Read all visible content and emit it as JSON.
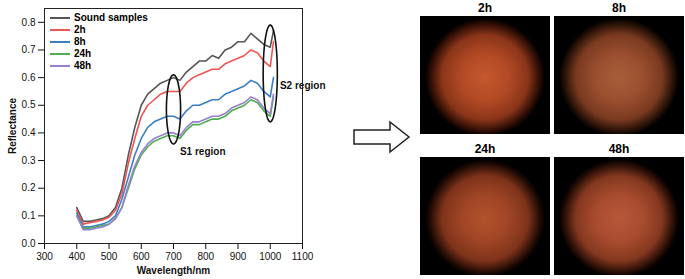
{
  "chart_data": {
    "type": "line",
    "x_label": "Wavelength/nm",
    "y_label": "Reflectance",
    "x": [
      400,
      420,
      440,
      460,
      480,
      500,
      520,
      540,
      560,
      580,
      600,
      620,
      640,
      660,
      680,
      700,
      720,
      740,
      760,
      780,
      800,
      820,
      840,
      860,
      880,
      900,
      920,
      940,
      960,
      980,
      1000,
      1010
    ],
    "series": [
      {
        "name": "Sound samples",
        "color": "#555555",
        "values": [
          0.13,
          0.08,
          0.08,
          0.085,
          0.09,
          0.1,
          0.13,
          0.2,
          0.32,
          0.42,
          0.5,
          0.54,
          0.56,
          0.58,
          0.59,
          0.6,
          0.59,
          0.62,
          0.64,
          0.66,
          0.66,
          0.68,
          0.67,
          0.7,
          0.71,
          0.73,
          0.73,
          0.76,
          0.74,
          0.72,
          0.71,
          0.77
        ]
      },
      {
        "name": "2h",
        "color": "#ee5555",
        "values": [
          0.12,
          0.07,
          0.075,
          0.08,
          0.085,
          0.095,
          0.12,
          0.18,
          0.29,
          0.38,
          0.46,
          0.5,
          0.52,
          0.54,
          0.55,
          0.55,
          0.55,
          0.58,
          0.6,
          0.61,
          0.62,
          0.63,
          0.63,
          0.65,
          0.66,
          0.67,
          0.68,
          0.7,
          0.69,
          0.66,
          0.64,
          0.73
        ]
      },
      {
        "name": "8h",
        "color": "#3a7fc4",
        "values": [
          0.11,
          0.06,
          0.06,
          0.065,
          0.07,
          0.08,
          0.1,
          0.16,
          0.24,
          0.32,
          0.38,
          0.42,
          0.44,
          0.45,
          0.46,
          0.46,
          0.45,
          0.48,
          0.5,
          0.5,
          0.51,
          0.52,
          0.52,
          0.54,
          0.55,
          0.56,
          0.57,
          0.59,
          0.58,
          0.55,
          0.53,
          0.6
        ]
      },
      {
        "name": "24h",
        "color": "#4caf50",
        "values": [
          0.1,
          0.055,
          0.055,
          0.06,
          0.065,
          0.07,
          0.09,
          0.13,
          0.2,
          0.27,
          0.32,
          0.35,
          0.37,
          0.38,
          0.39,
          0.39,
          0.38,
          0.41,
          0.43,
          0.43,
          0.44,
          0.45,
          0.45,
          0.46,
          0.48,
          0.49,
          0.5,
          0.52,
          0.51,
          0.48,
          0.46,
          0.53
        ]
      },
      {
        "name": "48h",
        "color": "#9a7fd1",
        "values": [
          0.1,
          0.05,
          0.05,
          0.055,
          0.06,
          0.07,
          0.09,
          0.13,
          0.21,
          0.28,
          0.33,
          0.36,
          0.38,
          0.39,
          0.4,
          0.4,
          0.39,
          0.42,
          0.44,
          0.44,
          0.45,
          0.46,
          0.46,
          0.47,
          0.49,
          0.5,
          0.51,
          0.53,
          0.52,
          0.49,
          0.47,
          0.54
        ]
      }
    ],
    "xlim": [
      300,
      1100
    ],
    "xticks": [
      300,
      400,
      500,
      600,
      700,
      800,
      900,
      1000,
      1100
    ],
    "ylim": [
      0,
      0.85
    ],
    "yticks": [
      {
        "value": 0,
        "label": "0.0"
      },
      0.1,
      0.2,
      0.3,
      0.4,
      0.5,
      0.6,
      0.7,
      0.8
    ],
    "grid": false,
    "legend": "top-left",
    "annotations": [
      {
        "text": "S1 region",
        "x": 720,
        "y": 0.33,
        "ellipse_x": 700,
        "ellipse_y": [
          0.36,
          0.61
        ]
      },
      {
        "text": "S2 region",
        "x": 1030,
        "y": 0.57,
        "ellipse_x": 1000,
        "ellipse_y": [
          0.44,
          0.79
        ]
      }
    ]
  },
  "image_panels": {
    "labels": [
      "2h",
      "8h",
      "24h",
      "48h"
    ]
  }
}
